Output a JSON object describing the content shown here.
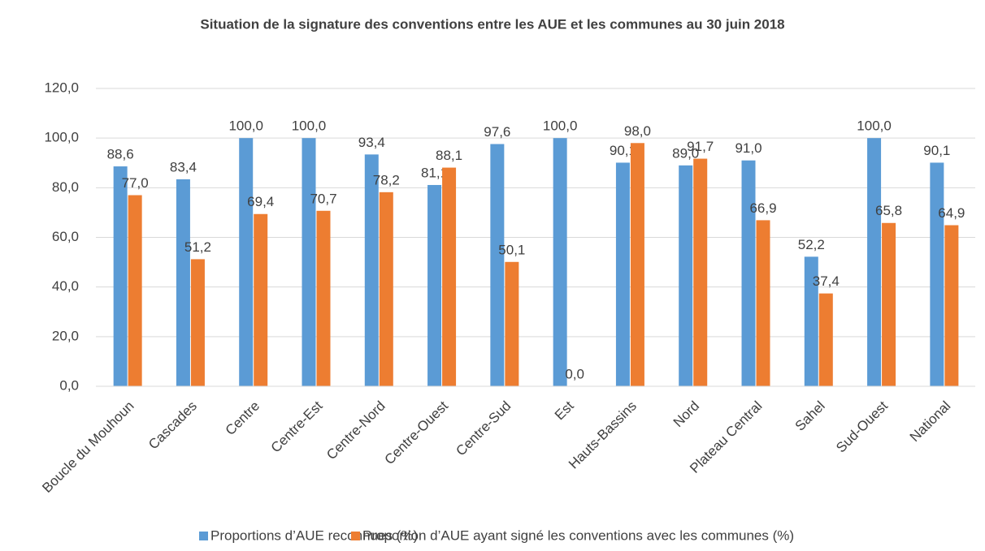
{
  "chart_data": {
    "type": "bar",
    "title": "Situation de la signature des conventions entre les AUE et les communes au 30 juin 2018",
    "categories": [
      "Boucle du Mouhoun",
      "Cascades",
      "Centre",
      "Centre-Est",
      "Centre-Nord",
      "Centre-Ouest",
      "Centre-Sud",
      "Est",
      "Hauts-Bassins",
      "Nord",
      "Plateau Central",
      "Sahel",
      "Sud-Ouest",
      "National"
    ],
    "series": [
      {
        "name": "Proportions d’AUE reconnues (%)",
        "color": "#5b9bd5",
        "values": [
          88.6,
          83.4,
          100,
          100,
          93.4,
          81.1,
          97.6,
          100,
          90.1,
          89,
          91,
          52.2,
          100,
          90.1
        ],
        "value_labels": [
          "88,6",
          "83,4",
          "100,0",
          "100,0",
          "93,4",
          "81,1",
          "97,6",
          "100,0",
          "90,1",
          "89,0",
          "91,0",
          "52,2",
          "100,0",
          "90,1"
        ]
      },
      {
        "name": "Proportion d’AUE ayant signé les conventions avec les communes (%)",
        "color": "#ed7d31",
        "values": [
          77,
          51.2,
          69.4,
          70.7,
          78.2,
          88.1,
          50.1,
          0,
          98,
          91.7,
          66.9,
          37.4,
          65.8,
          64.9
        ],
        "value_labels": [
          "77,0",
          "51,2",
          "69,4",
          "70,7",
          "78,2",
          "88,1",
          "50,1",
          "0,0",
          "98,0",
          "91,7",
          "66,9",
          "37,4",
          "65,8",
          "64,9"
        ]
      }
    ],
    "ylim": [
      0,
      120
    ],
    "yticks": [
      {
        "value": 0,
        "label": "0,0"
      },
      {
        "value": 20,
        "label": "20,0"
      },
      {
        "value": 40,
        "label": "40,0"
      },
      {
        "value": 60,
        "label": "60,0"
      },
      {
        "value": 80,
        "label": "80,0"
      },
      {
        "value": 100,
        "label": "100,0"
      },
      {
        "value": 120,
        "label": "120,0"
      }
    ],
    "grid": true,
    "legend": "bottom"
  }
}
